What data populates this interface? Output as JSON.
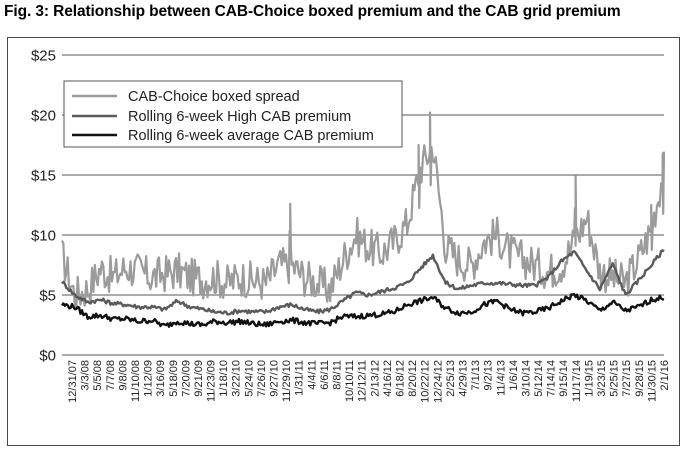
{
  "figure": {
    "title": "Fig. 3: Relationship between CAB-Choice boxed premium and the CAB grid premium"
  },
  "chart_data": {
    "type": "line",
    "title": "Fig. 3: Relationship between CAB-Choice boxed premium and the CAB grid premium",
    "xlabel": "",
    "ylabel": "",
    "ylim": [
      0,
      25
    ],
    "yticks": [
      "$0",
      "$5",
      "$10",
      "$15",
      "$20",
      "$25"
    ],
    "ytick_values": [
      0,
      5,
      10,
      15,
      20,
      25
    ],
    "x_range": [
      "2007-12-31",
      "2016-02-01"
    ],
    "x_tick_labels": [
      "12/31/07",
      "3/3/08",
      "5/5/08",
      "7/7/08",
      "9/8/08",
      "11/10/08",
      "1/12/09",
      "3/16/09",
      "5/18/09",
      "7/20/09",
      "9/21/09",
      "11/23/09",
      "1/18/10",
      "3/22/10",
      "5/24/10",
      "7/26/10",
      "9/27/10",
      "11/29/10",
      "1/31/11",
      "4/4/11",
      "6/6/11",
      "8/8/11",
      "10/10/11",
      "12/12/11",
      "2/13/12",
      "4/16/12",
      "6/18/12",
      "8/20/12",
      "10/22/12",
      "12/24/12",
      "2/25/13",
      "4/29/13",
      "7/1/13",
      "9/2/13",
      "11/4/13",
      "1/6/14",
      "3/10/14",
      "5/12/14",
      "7/14/14",
      "9/15/14",
      "11/17/14",
      "1/19/15",
      "3/23/15",
      "5/25/15",
      "7/27/15",
      "9/28/15",
      "11/30/15",
      "2/1/16"
    ],
    "grid": true,
    "legend": "top-left",
    "series": [
      {
        "name": "CAB-Choice boxed spread",
        "color": "#9b9b9b",
        "x": [
          "2007-12-31",
          "2008-03-03",
          "2008-05-05",
          "2008-07-07",
          "2008-09-08",
          "2008-11-10",
          "2009-01-12",
          "2009-03-16",
          "2009-05-18",
          "2009-07-20",
          "2009-09-21",
          "2009-11-23",
          "2010-01-18",
          "2010-03-22",
          "2010-05-24",
          "2010-07-26",
          "2010-09-27",
          "2010-11-29",
          "2011-01-31",
          "2011-04-04",
          "2011-06-06",
          "2011-08-08",
          "2011-10-10",
          "2011-12-12",
          "2012-02-13",
          "2012-04-16",
          "2012-06-18",
          "2012-08-20",
          "2012-10-22",
          "2012-12-24",
          "2013-02-25",
          "2013-04-29",
          "2013-07-01",
          "2013-09-02",
          "2013-11-04",
          "2014-01-06",
          "2014-03-10",
          "2014-05-12",
          "2014-07-14",
          "2014-09-15",
          "2014-11-17",
          "2015-01-19",
          "2015-03-23",
          "2015-05-25",
          "2015-07-27",
          "2015-09-28",
          "2015-11-30",
          "2016-02-01"
        ],
        "values": [
          8.3,
          5.0,
          5.5,
          7.2,
          6.5,
          7.3,
          7.0,
          6.5,
          6.8,
          7.0,
          6.5,
          6.3,
          6.5,
          6.0,
          6.5,
          6.2,
          6.0,
          7.5,
          7.5,
          6.5,
          6.0,
          5.5,
          8.0,
          10.0,
          9.0,
          8.5,
          9.5,
          11.0,
          15.5,
          17.5,
          9.0,
          8.0,
          7.5,
          9.5,
          10.0,
          8.5,
          8.0,
          7.5,
          7.0,
          7.5,
          9.5,
          11.5,
          7.0,
          6.5,
          6.0,
          8.0,
          10.5,
          15.5
        ],
        "peaks": [
          {
            "x": "2011-01-24",
            "y": 12.6
          },
          {
            "x": "2012-10-15",
            "y": 17.5
          },
          {
            "x": "2012-12-10",
            "y": 20.2
          },
          {
            "x": "2014-11-24",
            "y": 14.9
          },
          {
            "x": "2015-11-30",
            "y": 12.5
          },
          {
            "x": "2016-01-25",
            "y": 16.8
          }
        ]
      },
      {
        "name": "Rolling 6-week High CAB premium",
        "color": "#5a5a5a",
        "x": [
          "2007-12-31",
          "2008-03-03",
          "2008-05-05",
          "2008-07-07",
          "2008-09-08",
          "2008-11-10",
          "2009-01-12",
          "2009-03-16",
          "2009-05-18",
          "2009-07-20",
          "2009-09-21",
          "2009-11-23",
          "2010-01-18",
          "2010-03-22",
          "2010-05-24",
          "2010-07-26",
          "2010-09-27",
          "2010-11-29",
          "2011-01-31",
          "2011-04-04",
          "2011-06-06",
          "2011-08-08",
          "2011-10-10",
          "2011-12-12",
          "2012-02-13",
          "2012-04-16",
          "2012-06-18",
          "2012-08-20",
          "2012-10-22",
          "2012-12-24",
          "2013-02-25",
          "2013-04-29",
          "2013-07-01",
          "2013-09-02",
          "2013-11-04",
          "2014-01-06",
          "2014-03-10",
          "2014-05-12",
          "2014-07-14",
          "2014-09-15",
          "2014-11-17",
          "2015-01-19",
          "2015-03-23",
          "2015-05-25",
          "2015-07-27",
          "2015-09-28",
          "2015-11-30",
          "2016-02-01"
        ],
        "values": [
          6.1,
          5.0,
          4.4,
          4.6,
          4.3,
          4.2,
          4.0,
          4.0,
          3.8,
          4.5,
          4.0,
          3.8,
          3.6,
          3.5,
          3.7,
          3.6,
          3.6,
          4.0,
          4.2,
          3.8,
          3.6,
          3.8,
          4.5,
          5.2,
          5.0,
          5.3,
          5.6,
          6.0,
          7.2,
          8.3,
          6.0,
          5.5,
          5.8,
          6.0,
          6.0,
          5.9,
          5.8,
          5.8,
          6.5,
          7.8,
          8.6,
          7.0,
          5.5,
          7.6,
          5.0,
          6.2,
          7.5,
          8.8
        ]
      },
      {
        "name": "Rolling 6-week average CAB premium",
        "color": "#111111",
        "x": [
          "2007-12-31",
          "2008-03-03",
          "2008-05-05",
          "2008-07-07",
          "2008-09-08",
          "2008-11-10",
          "2009-01-12",
          "2009-03-16",
          "2009-05-18",
          "2009-07-20",
          "2009-09-21",
          "2009-11-23",
          "2010-01-18",
          "2010-03-22",
          "2010-05-24",
          "2010-07-26",
          "2010-09-27",
          "2010-11-29",
          "2011-01-31",
          "2011-04-04",
          "2011-06-06",
          "2011-08-08",
          "2011-10-10",
          "2011-12-12",
          "2012-02-13",
          "2012-04-16",
          "2012-06-18",
          "2012-08-20",
          "2012-10-22",
          "2012-12-24",
          "2013-02-25",
          "2013-04-29",
          "2013-07-01",
          "2013-09-02",
          "2013-11-04",
          "2014-01-06",
          "2014-03-10",
          "2014-05-12",
          "2014-07-14",
          "2014-09-15",
          "2014-11-17",
          "2015-01-19",
          "2015-03-23",
          "2015-05-25",
          "2015-07-27",
          "2015-09-28",
          "2015-11-30",
          "2016-02-01"
        ],
        "values": [
          4.2,
          4.0,
          3.2,
          3.3,
          3.0,
          3.0,
          2.8,
          2.9,
          2.4,
          2.8,
          2.6,
          2.5,
          2.8,
          2.7,
          2.8,
          2.6,
          2.5,
          2.8,
          2.9,
          2.7,
          2.6,
          2.7,
          3.2,
          3.2,
          3.3,
          3.4,
          3.6,
          4.2,
          4.5,
          4.8,
          3.9,
          3.5,
          3.6,
          4.2,
          4.5,
          3.8,
          3.5,
          3.6,
          3.9,
          4.5,
          5.0,
          4.5,
          3.7,
          4.4,
          3.7,
          4.0,
          4.6,
          4.8
        ]
      }
    ]
  }
}
